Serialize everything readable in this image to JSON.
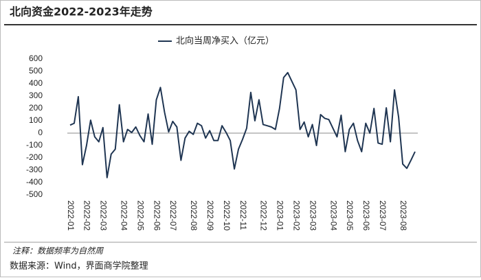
{
  "chart_data": {
    "type": "line",
    "title": "北向资金2022-2023年走势",
    "legend_label": "北向当周净买入（亿元）",
    "note": "注释：数据频率为自然周",
    "source": "数据来源：Wind，界面商学院整理",
    "color": "#1f3552",
    "ylim": [
      -500,
      600
    ],
    "yticks": [
      -500,
      -400,
      -300,
      -200,
      -100,
      0,
      100,
      200,
      300,
      400,
      500,
      600
    ],
    "categories": [
      "2022-01",
      null,
      null,
      null,
      "2022-02",
      null,
      null,
      null,
      "2022-03",
      null,
      null,
      null,
      null,
      "2022-04",
      null,
      null,
      null,
      "2022-05",
      null,
      null,
      null,
      "2022-06",
      null,
      null,
      null,
      "2022-07",
      null,
      null,
      null,
      null,
      "2022-08",
      null,
      null,
      null,
      "2022-09",
      null,
      null,
      null,
      "2022-10",
      null,
      null,
      null,
      "2022-11",
      null,
      null,
      null,
      null,
      "2022-12",
      null,
      null,
      null,
      "2023-01",
      null,
      null,
      null,
      "2023-02",
      null,
      null,
      null,
      "2023-03",
      null,
      null,
      null,
      null,
      "2023-04",
      null,
      null,
      null,
      "2023-05",
      null,
      null,
      null,
      "2023-06",
      null,
      null,
      null,
      "2023-07",
      null,
      null,
      null,
      null,
      "2023-08",
      null,
      null,
      null
    ],
    "values": [
      65,
      80,
      295,
      -255,
      -100,
      105,
      -30,
      -70,
      45,
      -360,
      -170,
      -130,
      230,
      -70,
      30,
      5,
      50,
      -20,
      -70,
      155,
      -90,
      270,
      370,
      170,
      10,
      95,
      50,
      -220,
      -40,
      15,
      -10,
      80,
      60,
      -40,
      20,
      -60,
      -60,
      60,
      5,
      -60,
      -290,
      -130,
      -50,
      40,
      330,
      100,
      270,
      70,
      60,
      50,
      30,
      200,
      450,
      490,
      420,
      350,
      30,
      90,
      -30,
      70,
      -100,
      150,
      120,
      110,
      40,
      -30,
      145,
      -150,
      30,
      80,
      -60,
      -150,
      80,
      0,
      200,
      -80,
      -90,
      205,
      -70,
      350,
      130,
      -250,
      -285,
      -220,
      -150
    ]
  }
}
